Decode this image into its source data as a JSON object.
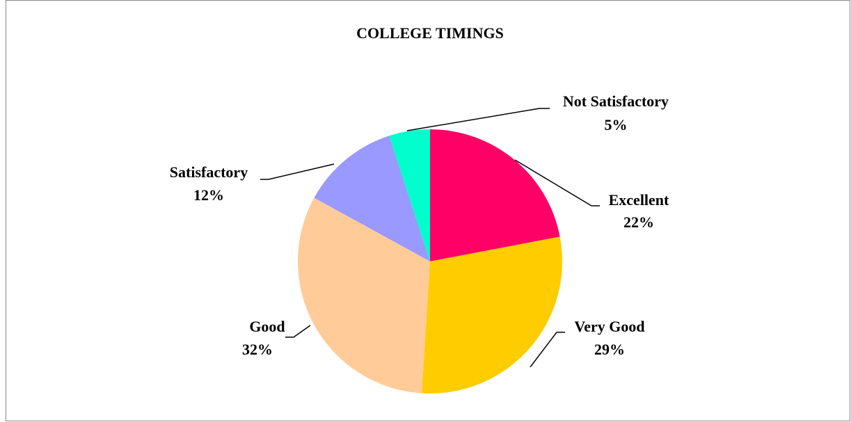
{
  "chart_data": {
    "type": "pie",
    "title": "COLLEGE TIMINGS",
    "categories": [
      "Excellent",
      "Very Good",
      "Good",
      "Satisfactory",
      "Not Satisfactory"
    ],
    "values": [
      22,
      29,
      32,
      12,
      5
    ],
    "value_labels": [
      "22%",
      "29%",
      "32%",
      "12%",
      "5%"
    ],
    "colors": [
      "#ff0066",
      "#ffcc00",
      "#ffcc99",
      "#9999ff",
      "#00ffcc"
    ]
  }
}
